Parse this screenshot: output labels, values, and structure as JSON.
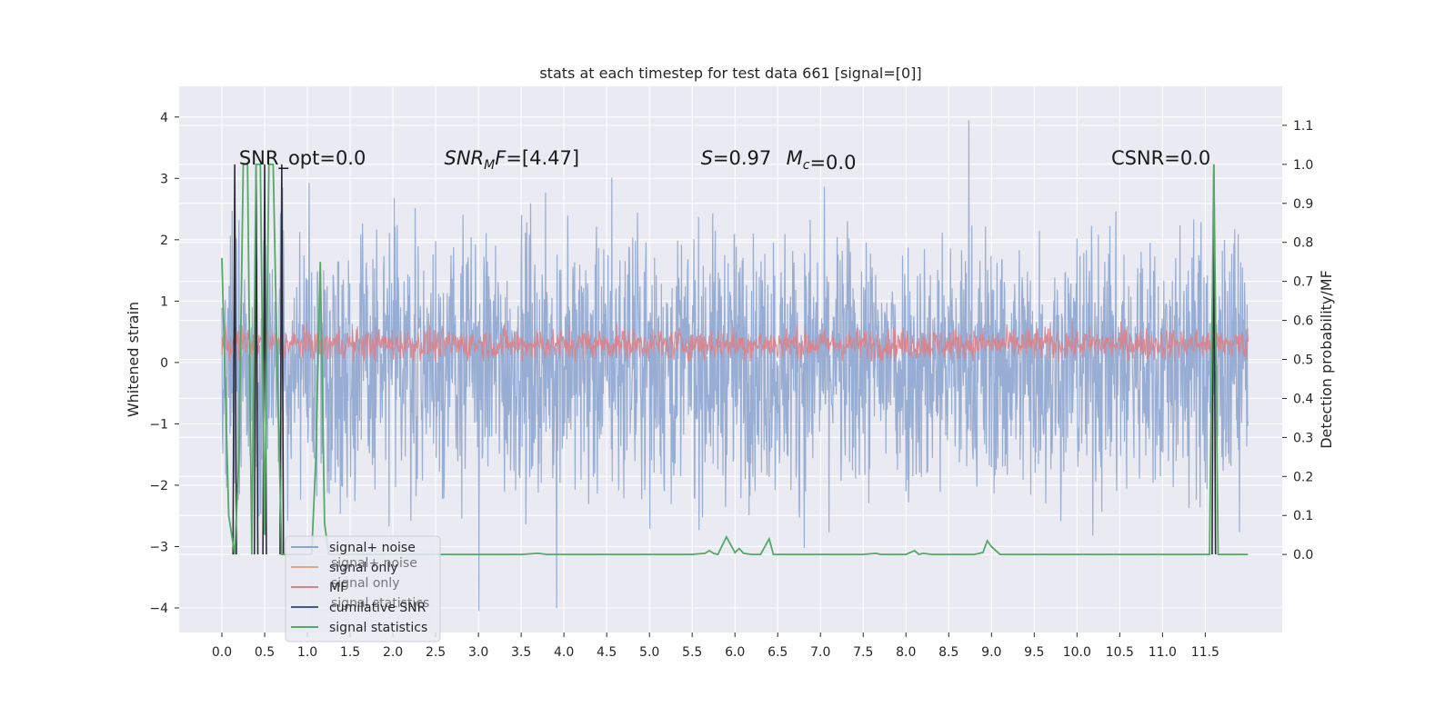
{
  "chart_data": {
    "type": "line",
    "title": "stats at each timestep for test data 661 [signal=[0]]",
    "ylabel": "Whitened strain",
    "y2label": "Detection probability/MF",
    "xlim": [
      -0.5,
      12.4
    ],
    "ylim": [
      -4.4,
      4.5
    ],
    "y2lim": [
      -0.2,
      1.2
    ],
    "x_ticks": [
      0.0,
      0.5,
      1.0,
      1.5,
      2.0,
      2.5,
      3.0,
      3.5,
      4.0,
      4.5,
      5.0,
      5.5,
      6.0,
      6.5,
      7.0,
      7.5,
      8.0,
      8.5,
      9.0,
      9.5,
      10.0,
      10.5,
      11.0,
      11.5
    ],
    "x_tick_labels": [
      "0.0",
      "0.5",
      "1.0",
      "1.5",
      "2.0",
      "2.5",
      "3.0",
      "3.5",
      "4.0",
      "4.5",
      "5.0",
      "5.5",
      "6.0",
      "6.5",
      "7.0",
      "7.5",
      "8.0",
      "8.5",
      "9.0",
      "9.5",
      "10.0",
      "10.5",
      "11.0",
      "11.5"
    ],
    "y_ticks": [
      -4,
      -3,
      -2,
      -1,
      0,
      1,
      2,
      3,
      4
    ],
    "y_tick_labels": [
      "−4",
      "−3",
      "−2",
      "−1",
      "0",
      "1",
      "2",
      "3",
      "4"
    ],
    "y2_ticks": [
      0.0,
      0.1,
      0.2,
      0.3,
      0.4,
      0.5,
      0.6,
      0.7,
      0.8,
      0.9,
      1.0,
      1.1
    ],
    "y2_tick_labels": [
      "0.0",
      "0.1",
      "0.2",
      "0.3",
      "0.4",
      "0.5",
      "0.6",
      "0.7",
      "0.8",
      "0.9",
      "1.0",
      "1.1"
    ],
    "grid": true,
    "legend_placement": "lower-left",
    "legend": [
      {
        "label": "signal+ noise",
        "color": "#8fa6cf"
      },
      {
        "label": "signal only",
        "color": "#e0a68a"
      },
      {
        "label": "MF",
        "color": "#d9828a"
      },
      {
        "label": "cumilative SNR",
        "color": "#3a5aa6"
      },
      {
        "label": "signal statistics",
        "color": "#55a868"
      }
    ],
    "legend_ghost": [
      "signal+ noise",
      "signal only",
      "signal statistics"
    ],
    "annotations": [
      {
        "text": "SNR_opt=0.0",
        "x": 0.2,
        "y2": 1.0
      },
      {
        "text": "SNR_MF=[4.47]",
        "x": 2.6,
        "y2": 1.0
      },
      {
        "text": "S=0.97",
        "x": 5.6,
        "y2": 1.0
      },
      {
        "text": "M_c=0.0",
        "x": 6.6,
        "y2": 1.0
      },
      {
        "text": "CSNR=0.0",
        "x": 10.4,
        "y2": 1.0
      }
    ],
    "series": [
      {
        "name": "signal+ noise",
        "axis": "left",
        "color": "#8fa6cf",
        "x_range": [
          0.0,
          12.0
        ],
        "band_typical": [
          -2.0,
          2.0
        ],
        "extreme": [
          -4.05,
          4.1
        ]
      },
      {
        "name": "MF",
        "axis": "left",
        "color": "#d9828a",
        "x_range": [
          0.0,
          12.0
        ],
        "band_typical": [
          0.0,
          0.6
        ]
      },
      {
        "name": "cumilative SNR",
        "axis": "right",
        "color": "#2d2d3a",
        "spikes": [
          [
            0.15,
            1.0,
            0.0
          ],
          [
            0.4,
            1.0,
            0.0
          ],
          [
            0.5,
            1.0,
            0.0
          ],
          [
            0.7,
            1.0,
            0.0
          ],
          [
            11.6,
            1.0,
            0.0
          ]
        ]
      },
      {
        "name": "signal statistics",
        "axis": "right",
        "color": "#55a868",
        "x": [
          0.0,
          0.08,
          0.15,
          0.2,
          0.25,
          0.3,
          0.35,
          0.4,
          0.45,
          0.5,
          0.55,
          0.6,
          0.65,
          0.7,
          0.75,
          0.8,
          0.9,
          1.0,
          1.05,
          1.1,
          1.15,
          1.2,
          1.25,
          1.3,
          1.5,
          2.0,
          2.5,
          3.0,
          3.5,
          3.7,
          3.8,
          4.0,
          4.5,
          5.0,
          5.5,
          5.65,
          5.7,
          5.75,
          5.8,
          5.9,
          6.0,
          6.05,
          6.1,
          6.2,
          6.3,
          6.4,
          6.45,
          6.5,
          6.6,
          7.0,
          7.5,
          7.65,
          7.7,
          7.8,
          8.0,
          8.1,
          8.15,
          8.2,
          8.3,
          8.5,
          8.8,
          8.9,
          8.95,
          9.0,
          9.1,
          9.5,
          10.0,
          10.5,
          11.0,
          11.4,
          11.55,
          11.6,
          11.65,
          11.7,
          11.8,
          12.0
        ],
        "values": [
          0.76,
          0.1,
          0.0,
          0.25,
          1.0,
          1.0,
          0.0,
          1.0,
          1.0,
          0.05,
          1.0,
          1.0,
          0.45,
          0.0,
          0.0,
          0.0,
          0.0,
          0.0,
          0.0,
          0.25,
          0.75,
          0.08,
          0.0,
          0.0,
          0.0,
          0.0,
          0.0,
          0.0,
          0.0,
          0.003,
          0.0,
          0.0,
          0.0,
          0.0,
          0.0,
          0.003,
          0.01,
          0.003,
          0.0,
          0.045,
          0.005,
          0.015,
          0.003,
          0.0,
          0.0,
          0.04,
          0.0,
          0.0,
          0.0,
          0.0,
          0.0,
          0.003,
          0.0,
          0.0,
          0.0,
          0.01,
          0.0,
          0.003,
          0.0,
          0.0,
          0.0,
          0.005,
          0.035,
          0.02,
          0.0,
          0.0,
          0.0,
          0.0,
          0.0,
          0.0,
          0.0,
          1.0,
          0.0,
          0.0,
          0.0,
          0.0
        ]
      }
    ]
  }
}
